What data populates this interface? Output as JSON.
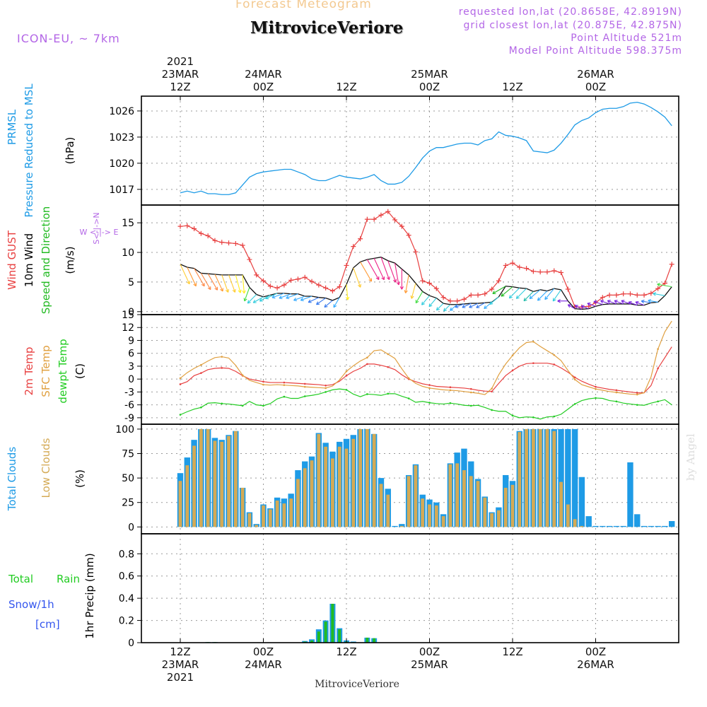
{
  "header": {
    "top_label": "Forecast Meteogram",
    "title": "MitroviceVeriore",
    "model": "ICON-EU, ~ 7km",
    "requested": "requested lon,lat (20.8658E, 42.8919N)",
    "closest": "grid closest lon,lat (20.875E, 42.875N)",
    "point_alt": "Point Altitude 521m",
    "model_alt": "Model Point Altitude 598.375m"
  },
  "footer_title": "MitroviceVeriore",
  "watermark": "by Angel",
  "time_axis": {
    "start": "2021-03-23 06Z",
    "step_hours": 1,
    "top_labels": [
      {
        "lines": [
          "2021",
          "23MAR",
          "12Z"
        ]
      },
      {
        "lines": [
          "24MAR",
          "00Z"
        ]
      },
      {
        "lines": [
          "12Z"
        ]
      },
      {
        "lines": [
          "25MAR",
          "00Z"
        ]
      },
      {
        "lines": [
          "12Z"
        ]
      },
      {
        "lines": [
          "26MAR",
          "00Z"
        ]
      }
    ],
    "bottom_labels": [
      {
        "lines": [
          "12Z",
          "23MAR",
          "2021"
        ]
      },
      {
        "lines": [
          "00Z",
          "24MAR"
        ]
      },
      {
        "lines": [
          "12Z"
        ]
      },
      {
        "lines": [
          "00Z",
          "25MAR"
        ]
      },
      {
        "lines": [
          "12Z"
        ]
      },
      {
        "lines": [
          "00Z",
          "26MAR"
        ]
      }
    ],
    "tick_hours": [
      6,
      18,
      30,
      42,
      54,
      66
    ]
  },
  "panel_labels": {
    "pressure": [
      "PRMSL",
      "Pressure Reduced to MSL",
      "(hPa)"
    ],
    "wind": [
      "Wind GUST",
      "10m Wind",
      "Speed and Direction",
      "(m/s)"
    ],
    "compass": {
      "n": "N",
      "s": "S",
      "w": "W",
      "e": "E",
      "ns_axis": "S<-|->N",
      "we_axis": "W <-|-> E"
    },
    "temp": [
      "2m Temp",
      "SFC Temp",
      "dewpt Temp",
      "(C)"
    ],
    "clouds": [
      "Total Clouds",
      "Low Clouds",
      "(%)"
    ],
    "precip": [
      "Total",
      "Rain",
      "Snow/1h",
      "[cm]",
      "1hr Precip (mm)"
    ]
  },
  "colors": {
    "pressure": "#1e9be6",
    "gust": "#e84040",
    "wind": "#111111",
    "temp2m": "#e84040",
    "sfc": "#e0a040",
    "dewpt": "#22cc22",
    "total_cloud": "#1e9be6",
    "low_cloud": "#d4aa55",
    "snow": "#3355ee",
    "rain": "#22bb22",
    "label_purple": "#b366e6"
  },
  "chart_data": [
    {
      "type": "line",
      "panel": "pressure",
      "ylim": [
        1015.2,
        1027.7
      ],
      "yticks": [
        "1017",
        "1020",
        "1023",
        "1026"
      ],
      "series": [
        {
          "name": "PRMSL",
          "values": [
            1016.6,
            1016.8,
            1016.6,
            1016.8,
            1016.5,
            1016.5,
            1016.4,
            1016.4,
            1016.6,
            1017.5,
            1018.4,
            1018.8,
            1019.0,
            1019.1,
            1019.2,
            1019.3,
            1019.3,
            1019.0,
            1018.7,
            1018.2,
            1018.0,
            1018.0,
            1018.3,
            1018.6,
            1018.4,
            1018.3,
            1018.2,
            1018.4,
            1018.7,
            1018.0,
            1017.6,
            1017.6,
            1017.8,
            1018.5,
            1019.5,
            1020.6,
            1021.4,
            1021.8,
            1021.8,
            1022.0,
            1022.2,
            1022.3,
            1022.3,
            1022.1,
            1022.6,
            1022.8,
            1023.6,
            1023.2,
            1023.1,
            1022.9,
            1022.6,
            1021.4,
            1021.3,
            1021.2,
            1021.5,
            1022.3,
            1023.3,
            1024.4,
            1024.9,
            1025.2,
            1025.8,
            1026.2,
            1026.3,
            1026.3,
            1026.5,
            1026.9,
            1027.0,
            1026.8,
            1026.4,
            1025.9,
            1025.3,
            1024.3
          ]
        }
      ]
    },
    {
      "type": "line",
      "panel": "wind",
      "ylim": [
        -0.5,
        18
      ],
      "yticks": [
        "0",
        "5",
        "10",
        "15"
      ],
      "series": [
        {
          "name": "Wind GUST",
          "values": [
            14.4,
            14.5,
            14.0,
            13.2,
            12.8,
            12.0,
            11.7,
            11.6,
            11.5,
            11.2,
            8.8,
            6.2,
            5.2,
            4.3,
            4.0,
            4.5,
            5.3,
            5.5,
            5.8,
            5.1,
            4.5,
            4.0,
            3.5,
            4.2,
            7.8,
            11.0,
            12.3,
            15.6,
            15.6,
            16.3,
            16.9,
            15.5,
            14.4,
            12.9,
            10.1,
            5.2,
            4.8,
            3.9,
            2.4,
            1.8,
            1.8,
            2.1,
            2.8,
            2.8,
            3.0,
            3.8,
            5.2,
            7.8,
            8.2,
            7.5,
            7.3,
            6.8,
            6.7,
            6.7,
            6.9,
            6.6,
            3.8,
            0.8,
            0.8,
            0.9,
            1.5,
            2.4,
            2.8,
            2.8,
            3.0,
            3.0,
            2.8,
            2.8,
            3.1,
            3.9,
            4.8,
            8.0
          ]
        },
        {
          "name": "10m Wind",
          "values": [
            8.0,
            7.5,
            7.3,
            6.5,
            6.4,
            6.3,
            6.2,
            6.2,
            6.2,
            6.2,
            4.1,
            2.9,
            2.5,
            2.8,
            3.1,
            3.1,
            3.0,
            3.0,
            2.6,
            2.6,
            2.4,
            2.3,
            1.9,
            2.4,
            4.6,
            7.4,
            8.4,
            8.8,
            9.0,
            9.2,
            8.6,
            8.2,
            7.2,
            6.2,
            4.8,
            3.4,
            2.7,
            2.3,
            1.4,
            1.2,
            1.2,
            1.3,
            1.4,
            1.4,
            1.5,
            1.6,
            2.5,
            4.3,
            4.2,
            4.0,
            3.9,
            3.4,
            3.7,
            3.5,
            3.9,
            3.7,
            1.8,
            0.5,
            0.4,
            0.5,
            0.9,
            1.2,
            1.3,
            1.3,
            1.3,
            1.3,
            1.1,
            1.1,
            1.5,
            1.6,
            2.7,
            4.2
          ]
        }
      ],
      "arrow_dirs": [
        155,
        155,
        150,
        150,
        150,
        155,
        160,
        160,
        165,
        175,
        200,
        225,
        240,
        240,
        245,
        250,
        250,
        250,
        250,
        250,
        245,
        235,
        230,
        210,
        175,
        160,
        150,
        150,
        155,
        160,
        160,
        170,
        180,
        190,
        195,
        210,
        220,
        220,
        225,
        225,
        230,
        250,
        245,
        245,
        240,
        230,
        230,
        240,
        230,
        225,
        225,
        225,
        230,
        225,
        220,
        215,
        270,
        300,
        300,
        290,
        290,
        290,
        290,
        290,
        290,
        290,
        290,
        290,
        280,
        280,
        280,
        280
      ],
      "arrow_colors": [
        "#ffcc33",
        "#ff9933",
        "#ff8844",
        "#ff8844",
        "#ff8844",
        "#ff9933",
        "#ffcc33",
        "#ffcc33",
        "#ffee22",
        "#ffee22",
        "#44dd44",
        "#33ccdd",
        "#33ccdd",
        "#33ccdd",
        "#33ccdd",
        "#33aaff",
        "#33aaff",
        "#33aaff",
        "#33aaff",
        "#33aaff",
        "#3377ee",
        "#3377ee",
        "#3377ee",
        "#33aaff",
        "#ffee22",
        "#ffcc33",
        "#ff9933",
        "#ee2288",
        "#ee2288",
        "#ee2288",
        "#ee2288",
        "#ee2288",
        "#ee2288",
        "#ff9933",
        "#ffcc33",
        "#44dd44",
        "#33ccdd",
        "#33ccdd",
        "#33ccdd",
        "#33ccdd",
        "#33aaff",
        "#3377ee",
        "#3377ee",
        "#3377ee",
        "#3377ee",
        "#33aaff",
        "#33ccdd",
        "#22bb22",
        "#22bb22",
        "#33ccdd",
        "#33ccdd",
        "#22bbaa",
        "#33aaff",
        "#33aaff",
        "#33aaff",
        "#33ccdd",
        "#7722dd",
        "#7722dd",
        "#7722dd",
        "#7722dd",
        "#7722dd",
        "#7722dd",
        "#7722dd",
        "#7722dd",
        "#7722dd",
        "#7722dd",
        "#7722dd",
        "#7722dd",
        "#3377ee",
        "#33aaff",
        "#33ccdd",
        "#44dd44"
      ]
    },
    {
      "type": "line",
      "panel": "temperature",
      "ylim": [
        -10.5,
        15
      ],
      "yticks": [
        "-9",
        "-6",
        "-3",
        "0",
        "3",
        "6",
        "9",
        "12",
        "15"
      ],
      "series": [
        {
          "name": "2m Temp",
          "values": [
            -1.2,
            -0.6,
            0.8,
            1.4,
            2.2,
            2.5,
            2.6,
            2.5,
            1.8,
            0.8,
            0.0,
            -0.3,
            -0.6,
            -0.8,
            -0.8,
            -0.8,
            -0.9,
            -1.0,
            -1.1,
            -1.2,
            -1.3,
            -1.5,
            -1.3,
            -0.5,
            0.8,
            1.8,
            2.5,
            3.5,
            3.5,
            3.2,
            2.8,
            2.2,
            1.0,
            0.0,
            -0.6,
            -1.1,
            -1.4,
            -1.7,
            -1.8,
            -1.9,
            -2.0,
            -2.1,
            -2.3,
            -2.6,
            -2.8,
            -2.9,
            -1.0,
            0.8,
            2.0,
            3.0,
            3.6,
            3.7,
            3.7,
            3.7,
            3.4,
            2.6,
            1.6,
            0.4,
            -0.5,
            -1.2,
            -1.8,
            -2.1,
            -2.4,
            -2.6,
            -2.8,
            -3.0,
            -3.2,
            -3.2,
            -1.5,
            2.5,
            5.0,
            7.5
          ]
        },
        {
          "name": "SFC Temp",
          "values": [
            0.2,
            1.5,
            2.5,
            3.3,
            4.2,
            5.0,
            5.2,
            4.9,
            3.2,
            0.9,
            -0.3,
            -0.8,
            -1.3,
            -1.4,
            -1.3,
            -1.4,
            -1.5,
            -1.6,
            -1.8,
            -1.9,
            -2.0,
            -2.1,
            -1.6,
            -0.2,
            1.8,
            3.1,
            4.2,
            5.0,
            6.6,
            6.8,
            5.8,
            4.8,
            2.4,
            0.2,
            -1.0,
            -1.7,
            -2.1,
            -2.3,
            -2.5,
            -2.6,
            -2.7,
            -2.9,
            -3.1,
            -3.3,
            -3.6,
            -2.2,
            1.0,
            3.5,
            5.5,
            7.3,
            8.5,
            8.7,
            7.6,
            6.6,
            5.6,
            4.3,
            2.0,
            -0.1,
            -1.3,
            -1.8,
            -2.3,
            -2.6,
            -2.9,
            -3.1,
            -3.3,
            -3.5,
            -3.6,
            -3.2,
            0.5,
            7.0,
            11.0,
            13.5
          ]
        },
        {
          "name": "dewpt Temp",
          "values": [
            -8.3,
            -7.6,
            -7.0,
            -6.6,
            -5.6,
            -5.5,
            -5.7,
            -5.8,
            -6.0,
            -6.2,
            -5.2,
            -6.0,
            -6.2,
            -5.7,
            -4.6,
            -4.1,
            -4.5,
            -4.5,
            -4.0,
            -3.8,
            -3.5,
            -3.0,
            -2.5,
            -2.3,
            -2.5,
            -3.5,
            -4.1,
            -3.5,
            -3.6,
            -3.8,
            -3.4,
            -3.4,
            -4.0,
            -4.5,
            -5.4,
            -5.2,
            -5.5,
            -5.7,
            -5.8,
            -5.6,
            -5.8,
            -6.1,
            -6.2,
            -6.1,
            -6.6,
            -7.2,
            -7.5,
            -7.5,
            -8.5,
            -9.0,
            -8.8,
            -8.9,
            -9.3,
            -8.8,
            -8.7,
            -8.2,
            -7.0,
            -5.8,
            -5.0,
            -4.6,
            -4.4,
            -4.5,
            -5.0,
            -5.2,
            -5.6,
            -5.8,
            -6.0,
            -6.1,
            -5.6,
            -5.2,
            -4.8,
            -6.0
          ]
        }
      ]
    },
    {
      "type": "bar",
      "panel": "clouds",
      "ylim": [
        -7,
        105
      ],
      "yticks": [
        "0",
        "25",
        "50",
        "75",
        "100"
      ],
      "series": [
        {
          "name": "Total Clouds",
          "values": [
            55,
            71,
            89,
            100,
            100,
            91,
            89,
            94,
            98,
            40,
            15,
            3,
            23,
            19,
            30,
            29,
            34,
            58,
            67,
            72,
            96,
            86,
            77,
            87,
            90,
            94,
            100,
            100,
            95,
            50,
            39,
            1,
            3,
            53,
            64,
            33,
            28,
            25,
            13,
            65,
            76,
            80,
            67,
            49,
            31,
            15,
            20,
            53,
            47,
            98,
            100,
            100,
            100,
            100,
            100,
            100,
            100,
            100,
            51,
            11,
            1,
            1,
            1,
            1,
            1,
            66,
            13,
            1,
            1,
            1,
            1,
            6
          ]
        },
        {
          "name": "Low Clouds",
          "values": [
            47,
            63,
            83,
            100,
            100,
            88,
            87,
            93,
            98,
            40,
            14,
            2,
            22,
            18,
            27,
            24,
            29,
            49,
            60,
            68,
            95,
            82,
            70,
            82,
            80,
            90,
            100,
            100,
            95,
            44,
            33,
            0,
            1,
            52,
            63,
            29,
            23,
            22,
            11,
            64,
            65,
            58,
            52,
            47,
            30,
            14,
            17,
            40,
            43,
            97,
            100,
            100,
            100,
            100,
            98,
            46,
            23,
            8,
            1,
            0,
            0,
            0,
            0,
            0,
            0,
            0,
            0,
            0,
            0,
            0,
            0,
            0
          ]
        }
      ]
    },
    {
      "type": "bar",
      "panel": "precipitation",
      "ylim": [
        0,
        0.98
      ],
      "yticks": [
        "0",
        "0.2",
        "0.4",
        "0.6",
        "0.8"
      ],
      "series": [
        {
          "name": "Total",
          "values": [
            0,
            0,
            0,
            0,
            0.005,
            0.005,
            0,
            0,
            0,
            0,
            0,
            0,
            0,
            0,
            0,
            0,
            0,
            0,
            0.015,
            0.03,
            0.12,
            0.2,
            0.35,
            0.13,
            0.02,
            0.01,
            0,
            0.045,
            0.04,
            0,
            0,
            0,
            0,
            0,
            0,
            0,
            0,
            0,
            0,
            0,
            0,
            0,
            0,
            0,
            0,
            0,
            0,
            0,
            0,
            0,
            0,
            0,
            0,
            0,
            0,
            0,
            0,
            0,
            0,
            0,
            0,
            0,
            0,
            0,
            0,
            0,
            0,
            0,
            0,
            0,
            0,
            0
          ]
        },
        {
          "name": "Rain",
          "values": [
            0,
            0,
            0,
            0,
            0.005,
            0.005,
            0,
            0,
            0,
            0,
            0,
            0,
            0,
            0,
            0,
            0,
            0,
            0,
            0.01,
            0.02,
            0.1,
            0.19,
            0.35,
            0.12,
            0.01,
            0.005,
            0,
            0.045,
            0.04,
            0,
            0,
            0,
            0,
            0,
            0,
            0,
            0,
            0,
            0,
            0,
            0,
            0,
            0,
            0,
            0,
            0,
            0,
            0,
            0,
            0,
            0,
            0,
            0,
            0,
            0,
            0,
            0,
            0,
            0,
            0,
            0,
            0,
            0,
            0,
            0,
            0,
            0,
            0,
            0,
            0,
            0,
            0
          ]
        }
      ]
    }
  ]
}
